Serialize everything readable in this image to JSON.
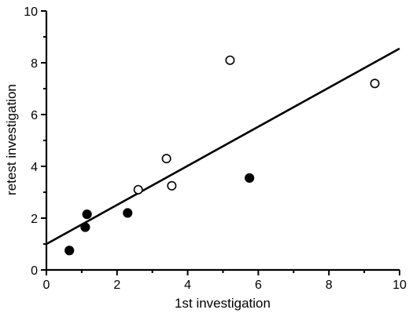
{
  "chart_data": {
    "type": "scatter",
    "title": "",
    "xlabel": "1st investigation",
    "ylabel": "retest investigation",
    "xlim": [
      0,
      10
    ],
    "ylim": [
      0,
      10
    ],
    "xticks": [
      "0",
      "2",
      "4",
      "6",
      "8",
      "10"
    ],
    "yticks": [
      "0",
      "2",
      "4",
      "6",
      "8",
      "10"
    ],
    "grid": false,
    "legend": "none",
    "series": [
      {
        "marker": "open-circle",
        "points": [
          [
            2.6,
            3.1
          ],
          [
            3.4,
            4.3
          ],
          [
            3.55,
            3.25
          ],
          [
            5.2,
            8.1
          ],
          [
            9.3,
            7.2
          ]
        ]
      },
      {
        "marker": "filled-circle",
        "points": [
          [
            0.65,
            0.75
          ],
          [
            1.1,
            1.65
          ],
          [
            1.15,
            2.15
          ],
          [
            2.3,
            2.2
          ],
          [
            5.75,
            3.55
          ]
        ]
      }
    ],
    "regression_line": {
      "x": [
        0,
        10
      ],
      "y": [
        1.0,
        8.55
      ]
    }
  }
}
